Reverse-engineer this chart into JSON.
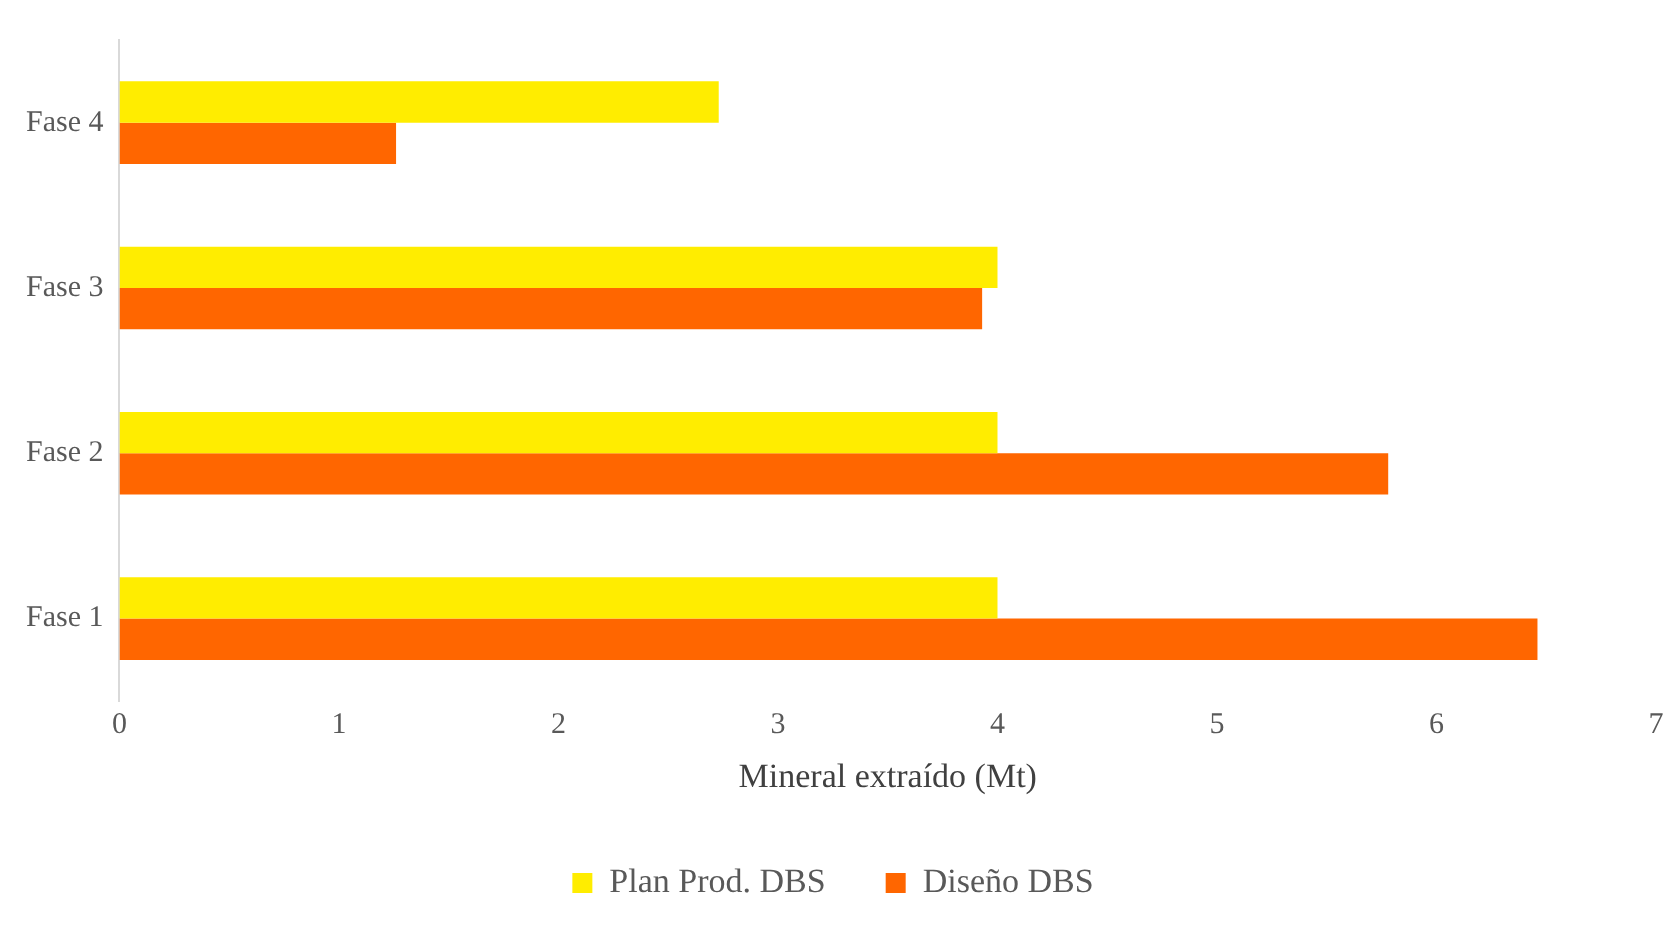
{
  "chart_data": {
    "type": "bar",
    "orientation": "horizontal",
    "xlabel": "Mineral extraído (Mt)",
    "categories": [
      "Fase 4",
      "Fase 3",
      "Fase 2",
      "Fase 1"
    ],
    "series": [
      {
        "name": "Plan Prod. DBS",
        "color": "#ffed00",
        "values": [
          2.73,
          4.0,
          4.0,
          4.0
        ]
      },
      {
        "name": "Diseño DBS",
        "color": "#ff6600",
        "values": [
          1.26,
          3.93,
          5.78,
          6.46
        ]
      }
    ],
    "xlim": [
      0,
      7
    ],
    "xticks": [
      0,
      1,
      2,
      3,
      4,
      5,
      6,
      7
    ],
    "grid": false,
    "legend": "bottom"
  }
}
